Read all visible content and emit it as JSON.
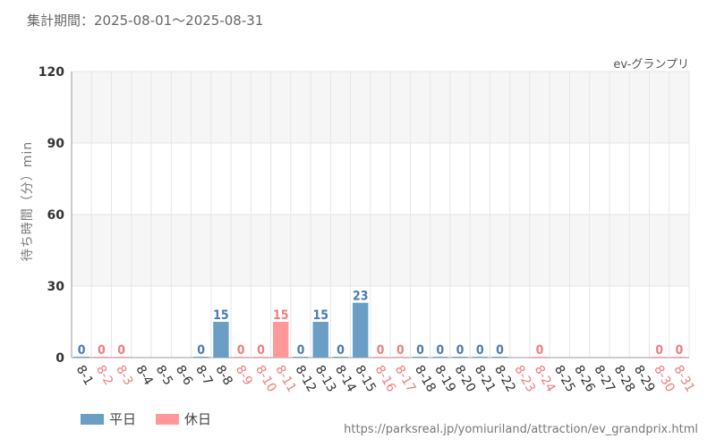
{
  "header": {
    "period": "集計期間：2025-08-01～2025-08-31",
    "series_label": "ev-グランプリ"
  },
  "colors": {
    "weekday": "#6a9ec5",
    "holiday": "#ff9999",
    "weekday_text": "#4a7bb0",
    "holiday_text": "#f07d7d",
    "band": "#f6f6f6",
    "grid": "#e6e6e6"
  },
  "legend": {
    "weekday": "平日",
    "holiday": "休日"
  },
  "footer": {
    "url": "https://parksreal.jp/yomiuriland/attraction/ev_grandprix.html"
  },
  "chart_data": {
    "type": "bar",
    "ylabel": "待ち時間（分）min",
    "ylim": [
      0,
      120
    ],
    "yticks": [
      0,
      30,
      60,
      90,
      120
    ],
    "categories": [
      "8-1",
      "8-2",
      "8-3",
      "8-4",
      "8-5",
      "8-6",
      "8-7",
      "8-8",
      "8-9",
      "8-10",
      "8-11",
      "8-12",
      "8-13",
      "8-14",
      "8-15",
      "8-16",
      "8-17",
      "8-18",
      "8-19",
      "8-20",
      "8-21",
      "8-22",
      "8-23",
      "8-24",
      "8-25",
      "8-26",
      "8-27",
      "8-28",
      "8-29",
      "8-30",
      "8-31"
    ],
    "values": [
      0,
      0,
      0,
      null,
      null,
      null,
      0,
      15,
      0,
      0,
      15,
      0,
      15,
      0,
      23,
      0,
      0,
      0,
      0,
      0,
      0,
      0,
      null,
      0,
      null,
      null,
      null,
      null,
      null,
      0,
      0
    ],
    "holiday": [
      false,
      true,
      true,
      false,
      false,
      false,
      false,
      false,
      true,
      true,
      true,
      false,
      false,
      false,
      false,
      true,
      true,
      false,
      false,
      false,
      false,
      false,
      true,
      true,
      false,
      false,
      false,
      false,
      false,
      true,
      true
    ],
    "grid": true
  }
}
